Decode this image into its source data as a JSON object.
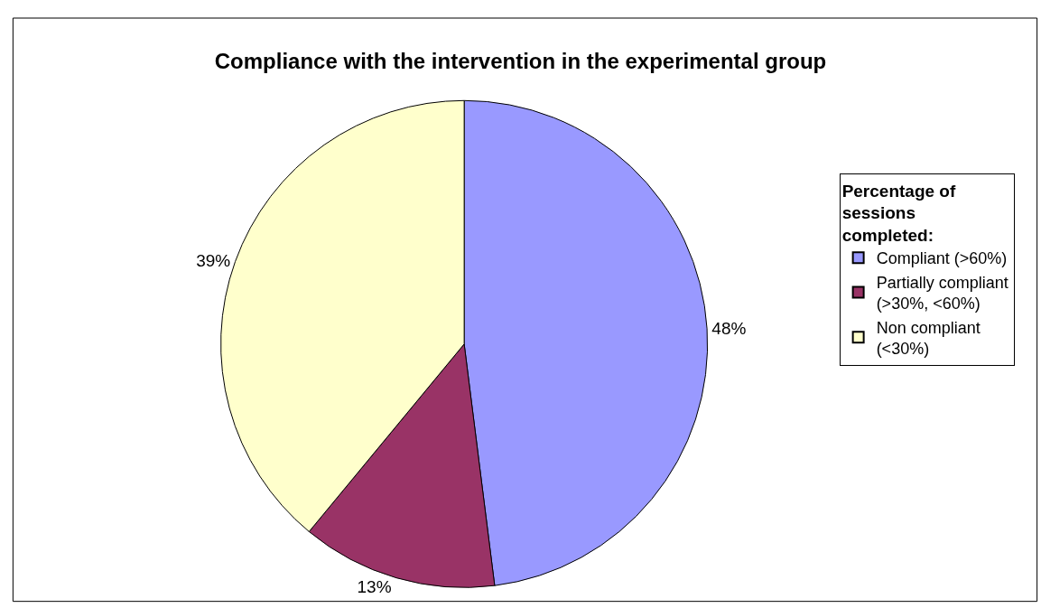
{
  "chart_data": {
    "type": "pie",
    "title": "Compliance with the intervention in the experimental group",
    "legend_title": "Percentage of sessions completed:",
    "legend": "right",
    "categories": [
      "Compliant (>60%)",
      "Partially compliant (>30%, <60%)",
      "Non compliant (<30%)"
    ],
    "values": [
      48,
      13,
      39
    ],
    "colors": [
      "#9999ff",
      "#993366",
      "#ffffcc"
    ],
    "value_labels": [
      "48%",
      "13%",
      "39%"
    ]
  }
}
